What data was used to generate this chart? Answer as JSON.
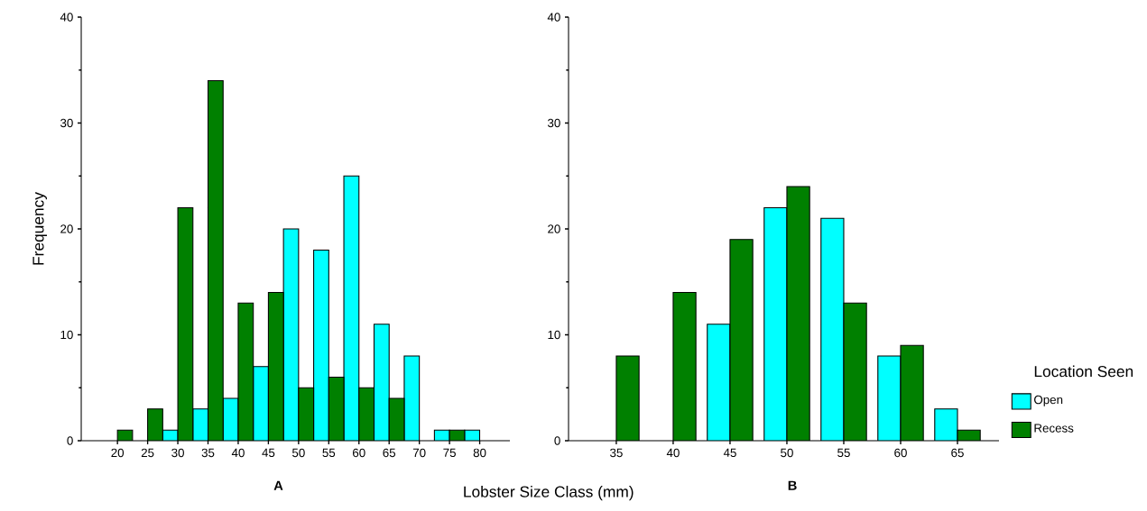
{
  "chart_data": [
    {
      "type": "bar",
      "title": "A",
      "xlabel": "Lobster Size Class (mm)",
      "ylabel": "Frequency",
      "categories": [
        "20",
        "25",
        "30",
        "35",
        "40",
        "45",
        "50",
        "55",
        "60",
        "65",
        "70",
        "75",
        "80"
      ],
      "series": [
        {
          "color": "#00ffff",
          "values": [
            null,
            null,
            1,
            3,
            4,
            7,
            20,
            18,
            25,
            11,
            8,
            1,
            1
          ]
        },
        {
          "color": "#008000",
          "values": [
            1,
            3,
            22,
            34,
            13,
            14,
            5,
            6,
            5,
            4,
            null,
            1,
            null
          ]
        }
      ],
      "ylim": [
        0,
        40
      ],
      "yticks": [
        0,
        {
          "value": 5,
          "label": null
        },
        10,
        {
          "value": 15,
          "label": null
        },
        20,
        {
          "value": 25,
          "label": null
        },
        30,
        {
          "value": 35,
          "label": null
        },
        40
      ],
      "grid": false
    },
    {
      "type": "bar",
      "title": "B",
      "legend_title": "Location Seen",
      "categories": [
        "35",
        "40",
        "45",
        "50",
        "55",
        "60",
        "65"
      ],
      "series": [
        {
          "name": "Open",
          "color": "#00ffff",
          "values": [
            null,
            null,
            11,
            22,
            21,
            8,
            3
          ]
        },
        {
          "name": "Recess",
          "color": "#008000",
          "values": [
            8,
            14,
            19,
            24,
            13,
            9,
            1
          ]
        }
      ],
      "ylim": [
        0,
        40
      ],
      "yticks": [
        0,
        {
          "value": 5,
          "label": null
        },
        10,
        {
          "value": 15,
          "label": null
        },
        20,
        {
          "value": 25,
          "label": null
        },
        30,
        {
          "value": 35,
          "label": null
        },
        40
      ],
      "grid": false,
      "legend": "bottom right"
    }
  ]
}
